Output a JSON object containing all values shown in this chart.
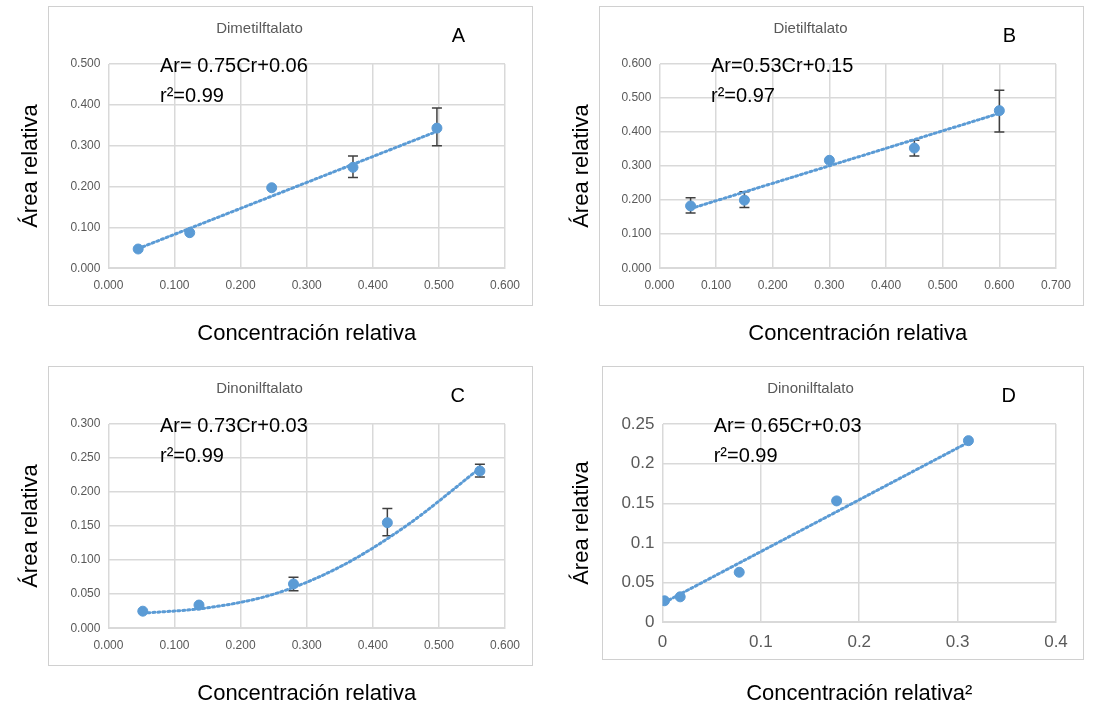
{
  "chart_data": [
    {
      "type": "scatter",
      "title": "Dimetilftalato",
      "xlabel": "Concentración relativa",
      "ylabel": "Área relativa",
      "annotations": [
        "A",
        "Ar= 0.75Cr+0.06",
        "r²=0.99"
      ],
      "grid": true,
      "legend": false,
      "marker": "circle",
      "xlim": [
        0,
        0.6
      ],
      "xticks": [
        {
          "value": 0,
          "label": "0.000"
        },
        {
          "value": 0.1,
          "label": "0.100"
        },
        {
          "value": 0.2,
          "label": "0.200"
        },
        {
          "value": 0.3,
          "label": "0.300"
        },
        {
          "value": 0.4,
          "label": "0.400"
        },
        {
          "value": 0.5,
          "label": "0.500"
        },
        {
          "value": 0.6,
          "label": "0.600"
        }
      ],
      "ylim": [
        0,
        0.5
      ],
      "yticks": [
        {
          "value": 0,
          "label": "0.000"
        },
        {
          "value": 0.1,
          "label": "0.100"
        },
        {
          "value": 0.2,
          "label": "0.200"
        },
        {
          "value": 0.3,
          "label": "0.300"
        },
        {
          "value": 0.4,
          "label": "0.400"
        },
        {
          "value": 0.5,
          "label": "0.500"
        }
      ],
      "series": [
        {
          "type": "scatter",
          "color": "#5b9bd5",
          "x": [
            0.045,
            0.123,
            0.247,
            0.37,
            0.497
          ],
          "values": [
            0.047,
            0.087,
            0.197,
            0.247,
            0.343
          ],
          "errors": [
            null,
            null,
            null,
            [
              0.222,
              0.275
            ],
            [
              0.3,
              0.392
            ]
          ]
        },
        {
          "type": "line",
          "color": "#5b9bd5",
          "line_style": "dotted",
          "marker": "none",
          "x": [
            0.045,
            0.497
          ],
          "values": [
            0.048,
            0.335
          ]
        }
      ]
    },
    {
      "type": "scatter",
      "title": "Dietilftalato",
      "xlabel": "Concentración relativa",
      "ylabel": "Área relativa",
      "annotations": [
        "B",
        "Ar=0.53Cr+0.15",
        "r²=0.97"
      ],
      "grid": true,
      "legend": false,
      "marker": "circle",
      "xlim": [
        0,
        0.7
      ],
      "xticks": [
        {
          "value": 0,
          "label": "0.000"
        },
        {
          "value": 0.1,
          "label": "0.100"
        },
        {
          "value": 0.2,
          "label": "0.200"
        },
        {
          "value": 0.3,
          "label": "0.300"
        },
        {
          "value": 0.4,
          "label": "0.400"
        },
        {
          "value": 0.5,
          "label": "0.500"
        },
        {
          "value": 0.6,
          "label": "0.600"
        },
        {
          "value": 0.7,
          "label": "0.700"
        }
      ],
      "ylim": [
        0,
        0.6
      ],
      "yticks": [
        {
          "value": 0,
          "label": "0.000"
        },
        {
          "value": 0.1,
          "label": "0.100"
        },
        {
          "value": 0.2,
          "label": "0.200"
        },
        {
          "value": 0.3,
          "label": "0.300"
        },
        {
          "value": 0.4,
          "label": "0.400"
        },
        {
          "value": 0.5,
          "label": "0.500"
        },
        {
          "value": 0.6,
          "label": "0.600"
        }
      ],
      "series": [
        {
          "type": "scatter",
          "color": "#5b9bd5",
          "x": [
            0.055,
            0.15,
            0.3,
            0.45,
            0.6
          ],
          "values": [
            0.183,
            0.2,
            0.317,
            0.353,
            0.463
          ],
          "errors": [
            [
              0.162,
              0.207
            ],
            [
              0.178,
              0.225
            ],
            null,
            [
              0.33,
              0.376
            ],
            [
              0.4,
              0.523
            ]
          ]
        },
        {
          "type": "line",
          "color": "#5b9bd5",
          "line_style": "dotted",
          "marker": "none",
          "x": [
            0.055,
            0.6
          ],
          "values": [
            0.175,
            0.455
          ]
        }
      ]
    },
    {
      "type": "scatter",
      "title": "Dinonilftalato",
      "xlabel": "Concentración relativa",
      "ylabel": "Área relativa",
      "annotations": [
        "C",
        "Ar= 0.73Cr+0.03",
        "r²=0.99"
      ],
      "grid": true,
      "legend": false,
      "marker": "circle",
      "xlim": [
        0,
        0.6
      ],
      "xticks": [
        {
          "value": 0,
          "label": "0.000"
        },
        {
          "value": 0.1,
          "label": "0.100"
        },
        {
          "value": 0.2,
          "label": "0.200"
        },
        {
          "value": 0.3,
          "label": "0.300"
        },
        {
          "value": 0.4,
          "label": "0.400"
        },
        {
          "value": 0.5,
          "label": "0.500"
        },
        {
          "value": 0.6,
          "label": "0.600"
        }
      ],
      "ylim": [
        0,
        0.3
      ],
      "yticks": [
        {
          "value": 0,
          "label": "0.000"
        },
        {
          "value": 0.05,
          "label": "0.050"
        },
        {
          "value": 0.1,
          "label": "0.100"
        },
        {
          "value": 0.15,
          "label": "0.150"
        },
        {
          "value": 0.2,
          "label": "0.200"
        },
        {
          "value": 0.25,
          "label": "0.250"
        },
        {
          "value": 0.3,
          "label": "0.300"
        }
      ],
      "series": [
        {
          "type": "scatter",
          "color": "#5b9bd5",
          "x": [
            0.052,
            0.137,
            0.28,
            0.422,
            0.562
          ],
          "values": [
            0.025,
            0.034,
            0.065,
            0.155,
            0.231
          ],
          "errors": [
            null,
            null,
            [
              0.055,
              0.075
            ],
            [
              0.136,
              0.176
            ],
            [
              0.222,
              0.241
            ]
          ]
        },
        {
          "type": "line",
          "color": "#5b9bd5",
          "line_style": "dotted",
          "marker": "none",
          "x": [
            0.052,
            0.15,
            0.25,
            0.35,
            0.45,
            0.562
          ],
          "values": [
            0.022,
            0.03,
            0.05,
            0.09,
            0.15,
            0.235
          ]
        }
      ]
    },
    {
      "type": "scatter",
      "title": "Dinonilftalato",
      "xlabel": "Concentración relativa²",
      "ylabel": "Área relativa",
      "annotations": [
        "D",
        "Ar= 0.65Cr+0.03",
        "r²=0.99"
      ],
      "grid": true,
      "legend": false,
      "marker": "circle",
      "xlim": [
        0,
        0.4
      ],
      "xticks": [
        0,
        0.1,
        0.2,
        0.3,
        0.4
      ],
      "ylim": [
        0,
        0.25
      ],
      "yticks": [
        0,
        0.05,
        0.1,
        0.15,
        0.2,
        0.25
      ],
      "series": [
        {
          "type": "scatter",
          "color": "#5b9bd5",
          "x": [
            0.002,
            0.018,
            0.078,
            0.177,
            0.311
          ],
          "values": [
            0.027,
            0.032,
            0.063,
            0.153,
            0.229
          ]
        },
        {
          "type": "line",
          "color": "#5b9bd5",
          "line_style": "dotted",
          "marker": "none",
          "x": [
            0.002,
            0.311
          ],
          "values": [
            0.025,
            0.227
          ]
        }
      ]
    }
  ]
}
